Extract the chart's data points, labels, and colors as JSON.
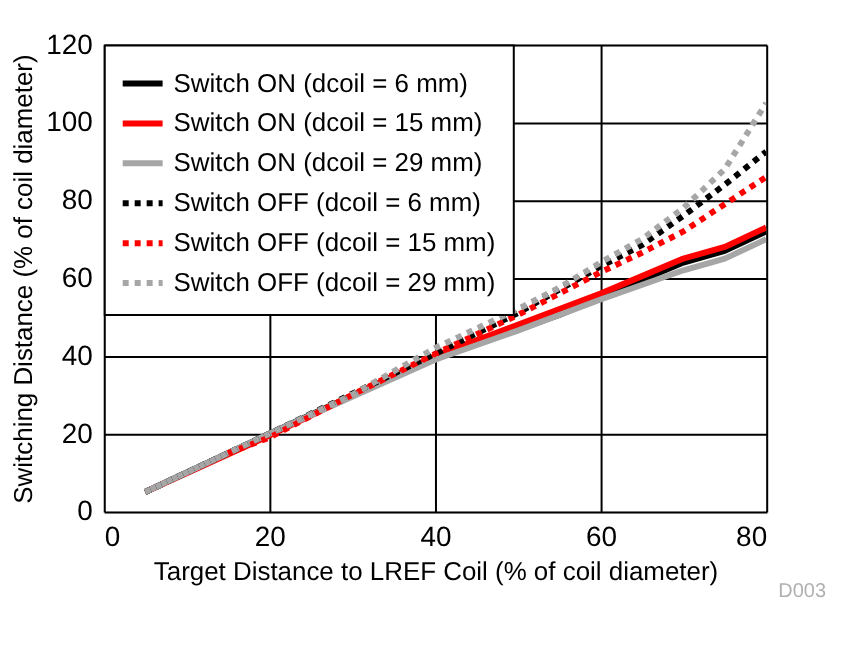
{
  "chart_data": {
    "type": "line",
    "xlabel": "Target Distance to LREF Coil (% of coil diameter)",
    "ylabel": "Switching Distance (% of coil diameter)",
    "xlim": [
      0,
      80
    ],
    "xticks": [
      0,
      20,
      40,
      60,
      80
    ],
    "ylim": [
      0,
      120
    ],
    "yticks": [
      0,
      20,
      40,
      60,
      80,
      100,
      120
    ],
    "grid": true,
    "legend": "top left",
    "series": [
      {
        "name": "Switch ON (dcoil = 6 mm)",
        "color": "#000000",
        "line_style": "solid",
        "x": [
          5,
          20,
          40,
          55,
          60,
          65,
          70,
          75,
          80
        ],
        "values": [
          5,
          20,
          39.5,
          50.5,
          55,
          59.5,
          64,
          67,
          72
        ]
      },
      {
        "name": "Switch ON (dcoil = 15 mm)",
        "color": "#ff0000",
        "line_style": "solid",
        "x": [
          5,
          20,
          40,
          50,
          60,
          65,
          70,
          75,
          80
        ],
        "values": [
          5,
          19.5,
          40,
          48,
          56,
          60.5,
          65,
          68,
          73
        ]
      },
      {
        "name": "Switch ON (dcoil = 29 mm)",
        "color": "#a6a6a6",
        "line_style": "solid",
        "x": [
          5,
          20,
          40,
          50,
          60,
          70,
          75,
          80
        ],
        "values": [
          5,
          20,
          39,
          46.5,
          54.5,
          62,
          65,
          70
        ]
      },
      {
        "name": "Switch OFF (dcoil = 6 mm)",
        "color": "#000000",
        "line_style": "dashed",
        "x": [
          5,
          20,
          40,
          50,
          55,
          60,
          65,
          70,
          75,
          80
        ],
        "values": [
          5,
          20,
          40.5,
          51,
          57,
          63,
          68.5,
          76,
          84,
          92.5
        ]
      },
      {
        "name": "Switch OFF (dcoil = 15 mm)",
        "color": "#ff0000",
        "line_style": "dashed",
        "x": [
          15,
          20,
          30,
          40,
          50,
          55,
          60,
          65,
          70,
          75,
          80
        ],
        "values": [
          15,
          19,
          30,
          40.5,
          50.5,
          56,
          61.5,
          66.5,
          72,
          79,
          86
        ]
      },
      {
        "name": "Switch OFF (dcoil = 29 mm)",
        "color": "#a6a6a6",
        "line_style": "dashed",
        "x": [
          5,
          20,
          30,
          40,
          50,
          55,
          60,
          65,
          70,
          75,
          80
        ],
        "values": [
          5,
          20,
          30,
          42,
          52,
          57.5,
          64,
          70,
          78,
          88,
          105
        ]
      }
    ],
    "annotations": [
      "D003"
    ]
  }
}
